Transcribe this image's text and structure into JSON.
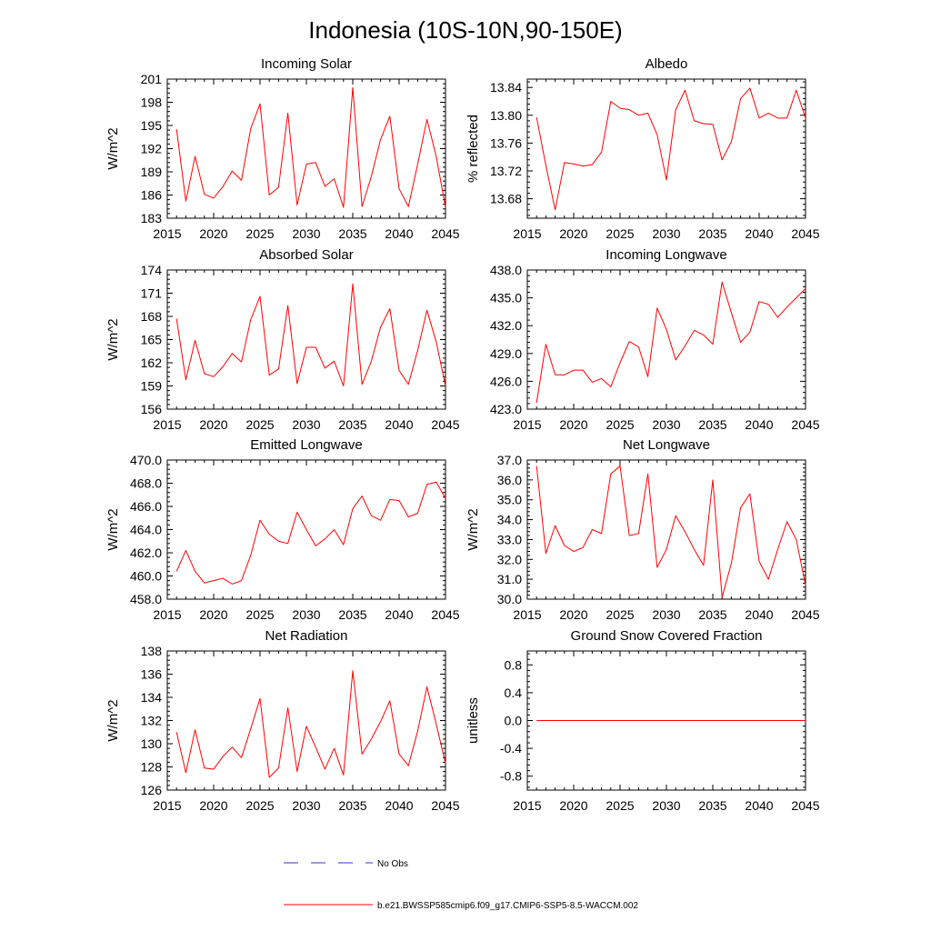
{
  "figure": {
    "title": "Indonesia (10S-10N,90-150E)"
  },
  "legend": {
    "obs_label": "No Obs",
    "obs_color": "#3333cc",
    "model_label": "b.e21.BWSSP585cmip6.f09_g17.CMIP6-SSP5-8.5-WACCM.002",
    "model_color": "#ff0000"
  },
  "chart_data": [
    {
      "type": "line",
      "title": "Incoming Solar",
      "xlabel": "",
      "ylabel": "W/m^2",
      "xlim": [
        2015,
        2045
      ],
      "ylim": [
        183,
        201
      ],
      "xticks": [
        "2015",
        "2020",
        "2025",
        "2030",
        "2035",
        "2040",
        "2045"
      ],
      "yticks": [
        "183",
        "186",
        "189",
        "192",
        "195",
        "198",
        "201"
      ],
      "series": [
        {
          "name": "b.e21.BWSSP585cmip6.f09_g17.CMIP6-SSP5-8.5-WACCM.002",
          "x": [
            2016,
            2017,
            2018,
            2019,
            2020,
            2021,
            2022,
            2023,
            2024,
            2025,
            2026,
            2027,
            2028,
            2029,
            2030,
            2031,
            2032,
            2033,
            2034,
            2035,
            2036,
            2037,
            2038,
            2039,
            2040,
            2041,
            2042,
            2043,
            2044,
            2045
          ],
          "values": [
            194.5,
            185.2,
            191.0,
            186.1,
            185.6,
            187.1,
            189.1,
            187.9,
            194.6,
            197.8,
            186.0,
            187.0,
            196.6,
            184.7,
            190.0,
            190.2,
            187.1,
            188.1,
            184.4,
            199.9,
            184.5,
            188.4,
            193.2,
            196.2,
            186.8,
            184.5,
            190.0,
            195.8,
            191.0,
            184.4
          ]
        }
      ]
    },
    {
      "type": "line",
      "title": "Albedo",
      "xlabel": "",
      "ylabel": "% reflected",
      "xlim": [
        2015,
        2045
      ],
      "ylim": [
        13.652,
        13.852
      ],
      "xticks": [
        "2015",
        "2020",
        "2025",
        "2030",
        "2035",
        "2040",
        "2045"
      ],
      "yticks": [
        "13.68",
        "13.72",
        "13.76",
        "13.80",
        "13.84"
      ],
      "series": [
        {
          "name": "b.e21.BWSSP585cmip6.f09_g17.CMIP6-SSP5-8.5-WACCM.002",
          "x": [
            2016,
            2017,
            2018,
            2019,
            2020,
            2021,
            2022,
            2023,
            2024,
            2025,
            2026,
            2027,
            2028,
            2029,
            2030,
            2031,
            2032,
            2033,
            2034,
            2035,
            2036,
            2037,
            2038,
            2039,
            2040,
            2041,
            2042,
            2043,
            2044,
            2045
          ],
          "values": [
            13.797,
            13.728,
            13.664,
            13.732,
            13.73,
            13.727,
            13.729,
            13.747,
            13.82,
            13.81,
            13.808,
            13.8,
            13.803,
            13.772,
            13.707,
            13.808,
            13.836,
            13.792,
            13.788,
            13.787,
            13.736,
            13.762,
            13.824,
            13.839,
            13.796,
            13.803,
            13.796,
            13.796,
            13.836,
            13.796
          ]
        }
      ]
    },
    {
      "type": "line",
      "title": "Absorbed Solar",
      "xlabel": "",
      "ylabel": "W/m^2",
      "xlim": [
        2015,
        2045
      ],
      "ylim": [
        156,
        174
      ],
      "xticks": [
        "2015",
        "2020",
        "2025",
        "2030",
        "2035",
        "2040",
        "2045"
      ],
      "yticks": [
        "156",
        "159",
        "162",
        "165",
        "168",
        "171",
        "174"
      ],
      "series": [
        {
          "name": "b.e21.BWSSP585cmip6.f09_g17.CMIP6-SSP5-8.5-WACCM.002",
          "x": [
            2016,
            2017,
            2018,
            2019,
            2020,
            2021,
            2022,
            2023,
            2024,
            2025,
            2026,
            2027,
            2028,
            2029,
            2030,
            2031,
            2032,
            2033,
            2034,
            2035,
            2036,
            2037,
            2038,
            2039,
            2040,
            2041,
            2042,
            2043,
            2044,
            2045
          ],
          "values": [
            167.7,
            159.8,
            164.9,
            160.6,
            160.2,
            161.5,
            163.2,
            162.1,
            167.6,
            170.6,
            160.4,
            161.2,
            169.4,
            159.3,
            164.0,
            164.0,
            161.3,
            162.2,
            159.0,
            172.2,
            159.2,
            162.2,
            166.6,
            169.0,
            161.0,
            159.2,
            163.6,
            168.8,
            164.7,
            159.0
          ]
        }
      ]
    },
    {
      "type": "line",
      "title": "Incoming Longwave",
      "xlabel": "",
      "ylabel": "",
      "xlim": [
        2015,
        2045
      ],
      "ylim": [
        423,
        438
      ],
      "xticks": [
        "2015",
        "2020",
        "2025",
        "2030",
        "2035",
        "2040",
        "2045"
      ],
      "yticks": [
        "423.0",
        "426.0",
        "429.0",
        "432.0",
        "435.0",
        "438.0"
      ],
      "series": [
        {
          "name": "b.e21.BWSSP585cmip6.f09_g17.CMIP6-SSP5-8.5-WACCM.002",
          "x": [
            2016,
            2017,
            2018,
            2019,
            2020,
            2021,
            2022,
            2023,
            2024,
            2025,
            2026,
            2027,
            2028,
            2029,
            2030,
            2031,
            2032,
            2033,
            2034,
            2035,
            2036,
            2037,
            2038,
            2039,
            2040,
            2041,
            2042,
            2043,
            2044,
            2045
          ],
          "values": [
            423.7,
            430.0,
            426.7,
            426.7,
            427.2,
            427.2,
            425.9,
            426.3,
            425.4,
            428.0,
            430.3,
            429.7,
            426.5,
            433.9,
            431.6,
            428.3,
            429.8,
            431.5,
            431.0,
            430.0,
            436.7,
            433.4,
            430.2,
            431.3,
            434.6,
            434.3,
            432.9,
            434.0,
            435.0,
            436.0
          ]
        }
      ]
    },
    {
      "type": "line",
      "title": "Emitted Longwave",
      "xlabel": "",
      "ylabel": "W/m^2",
      "xlim": [
        2015,
        2045
      ],
      "ylim": [
        458,
        470
      ],
      "xticks": [
        "2015",
        "2020",
        "2025",
        "2030",
        "2035",
        "2040",
        "2045"
      ],
      "yticks": [
        "458.0",
        "460.0",
        "462.0",
        "464.0",
        "466.0",
        "468.0",
        "470.0"
      ],
      "series": [
        {
          "name": "b.e21.BWSSP585cmip6.f09_g17.CMIP6-SSP5-8.5-WACCM.002",
          "x": [
            2016,
            2017,
            2018,
            2019,
            2020,
            2021,
            2022,
            2023,
            2024,
            2025,
            2026,
            2027,
            2028,
            2029,
            2030,
            2031,
            2032,
            2033,
            2034,
            2035,
            2036,
            2037,
            2038,
            2039,
            2040,
            2041,
            2042,
            2043,
            2044,
            2045
          ],
          "values": [
            460.4,
            462.2,
            460.4,
            459.4,
            459.6,
            459.8,
            459.3,
            459.6,
            461.8,
            464.8,
            463.6,
            463.0,
            462.8,
            465.5,
            464.0,
            462.6,
            463.2,
            464.0,
            462.7,
            465.8,
            466.9,
            465.2,
            464.8,
            466.6,
            466.5,
            465.1,
            465.4,
            467.9,
            468.1,
            466.7
          ]
        }
      ]
    },
    {
      "type": "line",
      "title": "Net Longwave",
      "xlabel": "",
      "ylabel": "W/m^2",
      "xlim": [
        2015,
        2045
      ],
      "ylim": [
        30,
        37
      ],
      "xticks": [
        "2015",
        "2020",
        "2025",
        "2030",
        "2035",
        "2040",
        "2045"
      ],
      "yticks": [
        "30.0",
        "31.0",
        "32.0",
        "33.0",
        "34.0",
        "35.0",
        "36.0",
        "37.0"
      ],
      "series": [
        {
          "name": "b.e21.BWSSP585cmip6.f09_g17.CMIP6-SSP5-8.5-WACCM.002",
          "x": [
            2016,
            2017,
            2018,
            2019,
            2020,
            2021,
            2022,
            2023,
            2024,
            2025,
            2026,
            2027,
            2028,
            2029,
            2030,
            2031,
            2032,
            2033,
            2034,
            2035,
            2036,
            2037,
            2038,
            2039,
            2040,
            2041,
            2042,
            2043,
            2044,
            2045
          ],
          "values": [
            36.7,
            32.3,
            33.7,
            32.7,
            32.4,
            32.6,
            33.5,
            33.3,
            36.3,
            36.7,
            33.2,
            33.3,
            36.3,
            31.6,
            32.5,
            34.2,
            33.4,
            32.5,
            31.7,
            36.0,
            30.1,
            31.8,
            34.6,
            35.3,
            31.9,
            31.0,
            32.5,
            33.9,
            33.0,
            30.7
          ]
        }
      ]
    },
    {
      "type": "line",
      "title": "Net Radiation",
      "xlabel": "",
      "ylabel": "W/m^2",
      "xlim": [
        2015,
        2045
      ],
      "ylim": [
        126,
        138
      ],
      "xticks": [
        "2015",
        "2020",
        "2025",
        "2030",
        "2035",
        "2040",
        "2045"
      ],
      "yticks": [
        "126",
        "128",
        "130",
        "132",
        "134",
        "136",
        "138"
      ],
      "series": [
        {
          "name": "b.e21.BWSSP585cmip6.f09_g17.CMIP6-SSP5-8.5-WACCM.002",
          "x": [
            2016,
            2017,
            2018,
            2019,
            2020,
            2021,
            2022,
            2023,
            2024,
            2025,
            2026,
            2027,
            2028,
            2029,
            2030,
            2031,
            2032,
            2033,
            2034,
            2035,
            2036,
            2037,
            2038,
            2039,
            2040,
            2041,
            2042,
            2043,
            2044,
            2045
          ],
          "values": [
            131.0,
            127.5,
            131.2,
            127.9,
            127.8,
            128.9,
            129.7,
            128.8,
            131.3,
            133.9,
            127.1,
            127.9,
            133.1,
            127.6,
            131.5,
            129.7,
            127.8,
            129.6,
            127.3,
            136.3,
            129.1,
            130.4,
            131.9,
            133.7,
            129.1,
            128.1,
            131.1,
            134.9,
            131.7,
            128.3
          ]
        }
      ]
    },
    {
      "type": "line",
      "title": "Ground Snow Covered Fraction",
      "xlabel": "",
      "ylabel": "unitless",
      "xlim": [
        2015,
        2045
      ],
      "ylim": [
        -1.0,
        1.0
      ],
      "xticks": [
        "2015",
        "2020",
        "2025",
        "2030",
        "2035",
        "2040",
        "2045"
      ],
      "yticks": [
        "-0.8",
        "-0.4",
        "0.0",
        "0.4",
        "0.8"
      ],
      "series": [
        {
          "name": "b.e21.BWSSP585cmip6.f09_g17.CMIP6-SSP5-8.5-WACCM.002",
          "x": [
            2016,
            2017,
            2018,
            2019,
            2020,
            2021,
            2022,
            2023,
            2024,
            2025,
            2026,
            2027,
            2028,
            2029,
            2030,
            2031,
            2032,
            2033,
            2034,
            2035,
            2036,
            2037,
            2038,
            2039,
            2040,
            2041,
            2042,
            2043,
            2044,
            2045
          ],
          "values": [
            0,
            0,
            0,
            0,
            0,
            0,
            0,
            0,
            0,
            0,
            0,
            0,
            0,
            0,
            0,
            0,
            0,
            0,
            0,
            0,
            0,
            0,
            0,
            0,
            0,
            0,
            0,
            0,
            0,
            0
          ]
        }
      ]
    }
  ]
}
